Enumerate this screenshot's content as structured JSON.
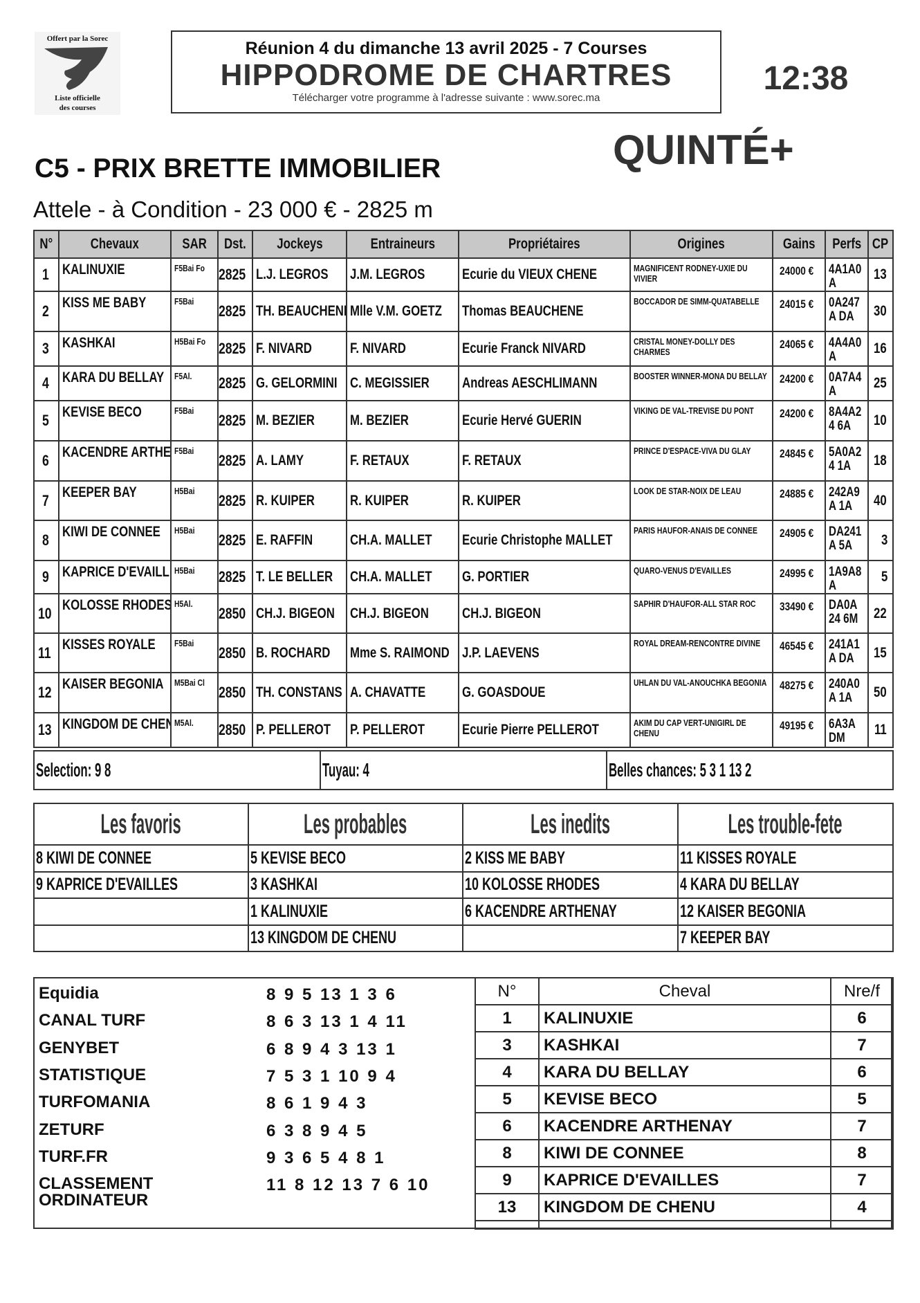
{
  "logo": {
    "top": "Offert par la Sorec",
    "bottom1": "Liste officielle",
    "bottom2": "des courses"
  },
  "header": {
    "reunion": "Réunion 4 du dimanche 13 avril 2025 - 7 Courses",
    "hippodrome": "HIPPODROME DE CHARTRES",
    "download": "Télécharger votre programme à l'adresse suivante : www.sorec.ma",
    "time": "12:38"
  },
  "quinte": "QUINTÉ+",
  "race": {
    "title": "C5 -  PRIX BRETTE IMMOBILIER",
    "subtitle": "Attele - à Condition - 23 000 € - 2825 m"
  },
  "table": {
    "headers": [
      "N°",
      "Chevaux",
      "SAR",
      "Dst.",
      "Jockeys",
      "Entraineurs",
      "Propriétaires",
      "Origines",
      "Gains",
      "Perfs",
      "CP"
    ],
    "rows": [
      [
        "1",
        "KALINUXIE",
        "F5Bai Fo",
        "2825",
        "L.J. LEGROS",
        "J.M. LEGROS",
        "Ecurie du VIEUX CHENE",
        "MAGNIFICENT RODNEY-UXIE DU VIVIER",
        "24000 €",
        "4A1A0A",
        "13"
      ],
      [
        "2",
        "KISS ME BABY",
        "F5Bai",
        "2825",
        "TH. BEAUCHENE",
        "Mlle V.M. GOETZ",
        "Thomas BEAUCHENE",
        "BOCCADOR DE SIMM-QUATABELLE",
        "24015 €",
        "0A247A DA",
        "30"
      ],
      [
        "3",
        "KASHKAI",
        "H5Bai Fo",
        "2825",
        "F. NIVARD",
        "F. NIVARD",
        "Ecurie Franck NIVARD",
        "CRISTAL MONEY-DOLLY DES CHARMES",
        "24065 €",
        "4A4A0A",
        "16"
      ],
      [
        "4",
        "KARA DU BELLAY",
        "F5Al.",
        "2825",
        "G. GELORMINI",
        "C. MEGISSIER",
        "Andreas AESCHLIMANN",
        "BOOSTER WINNER-MONA DU BELLAY",
        "24200 €",
        "0A7A4A",
        "25"
      ],
      [
        "5",
        "KEVISE BECO",
        "F5Bai",
        "2825",
        "M. BEZIER",
        "M. BEZIER",
        "Ecurie Hervé GUERIN",
        "VIKING DE VAL-TREVISE DU PONT",
        "24200 €",
        "8A4A24 6A",
        "10"
      ],
      [
        "6",
        "KACENDRE ARTHENAY",
        "F5Bai",
        "2825",
        "A. LAMY",
        "F. RETAUX",
        "F. RETAUX",
        "PRINCE D'ESPACE-VIVA DU GLAY",
        "24845 €",
        "5A0A24 1A",
        "18"
      ],
      [
        "7",
        "KEEPER BAY",
        "H5Bai",
        "2825",
        "R. KUIPER",
        "R. KUIPER",
        "R. KUIPER",
        "LOOK DE STAR-NOIX DE LEAU",
        "24885 €",
        "242A9A 1A",
        "40"
      ],
      [
        "8",
        "KIWI DE CONNEE",
        "H5Bai",
        "2825",
        "E. RAFFIN",
        "CH.A. MALLET",
        "Ecurie Christophe MALLET",
        "PARIS HAUFOR-ANAIS DE CONNEE",
        "24905 €",
        "DA241A 5A",
        "3"
      ],
      [
        "9",
        "KAPRICE D'EVAILLES",
        "H5Bai",
        "2825",
        "T. LE BELLER",
        "CH.A. MALLET",
        "G. PORTIER",
        "QUARO-VENUS D'EVAILLES",
        "24995 €",
        "1A9A8A",
        "5"
      ],
      [
        "10",
        "KOLOSSE RHODES",
        "H5Al.",
        "2850",
        "CH.J. BIGEON",
        "CH.J. BIGEON",
        "CH.J. BIGEON",
        "SAPHIR D'HAUFOR-ALL STAR ROC",
        "33490 €",
        "DA0A24 6M",
        "22"
      ],
      [
        "11",
        "KISSES ROYALE",
        "F5Bai",
        "2850",
        "B. ROCHARD",
        "Mme S. RAIMOND",
        "J.P. LAEVENS",
        "ROYAL DREAM-RENCONTRE DIVINE",
        "46545 €",
        "241A1A DA",
        "15"
      ],
      [
        "12",
        "KAISER BEGONIA",
        "M5Bai Cl",
        "2850",
        "TH. CONSTANS",
        "A. CHAVATTE",
        "G. GOASDOUE",
        "UHLAN DU VAL-ANOUCHKA BEGONIA",
        "48275 €",
        "240A0A 1A",
        "50"
      ],
      [
        "13",
        "KINGDOM DE CHENU",
        "M5Al.",
        "2850",
        "P. PELLEROT",
        "P. PELLEROT",
        "Ecurie Pierre PELLEROT",
        "AKIM DU CAP VERT-UNIGIRL DE CHENU",
        "49195 €",
        "6A3ADM",
        "11"
      ]
    ]
  },
  "selection": {
    "selection": "Selection: 9  8",
    "tuyau": "Tuyau: 4",
    "belles": "Belles chances: 5  3  1  13  2"
  },
  "categories": {
    "headers": [
      "Les favoris",
      "Les probables",
      "Les inedits",
      "Les trouble-fete"
    ],
    "rows": [
      [
        "8 KIWI DE CONNEE",
        "5 KEVISE BECO",
        "2 KISS ME BABY",
        "11 KISSES ROYALE"
      ],
      [
        "9 KAPRICE D'EVAILLES",
        "3 KASHKAI",
        "10 KOLOSSE RHODES",
        "4 KARA DU BELLAY"
      ],
      [
        "",
        "1 KALINUXIE",
        "6 KACENDRE ARTHENAY",
        "12 KAISER BEGONIA"
      ],
      [
        "",
        "13 KINGDOM DE CHENU",
        "",
        "7 KEEPER BAY"
      ]
    ]
  },
  "pronostics": [
    {
      "source": "Equidia",
      "value": "8 9 5 13 1 3 6"
    },
    {
      "source": "CANAL TURF",
      "value": "8 6 3 13 1 4 11"
    },
    {
      "source": "GENYBET",
      "value": "6 8 9 4 3 13 1"
    },
    {
      "source": "STATISTIQUE",
      "value": "7 5 3 1 10 9 4"
    },
    {
      "source": "TURFOMANIA",
      "value": "8 6 1 9 4 3"
    },
    {
      "source": "ZETURF",
      "value": "6 3 8 9 4 5"
    },
    {
      "source": "TURF.FR",
      "value": "9 3 6 5 4 8 1"
    },
    {
      "source": "CLASSEMENT ORDINATEUR",
      "value": "11 8 12 13 7 6 10"
    }
  ],
  "nre": {
    "headers": [
      "N°",
      "Cheval",
      "Nre/f"
    ],
    "rows": [
      [
        "1",
        "KALINUXIE",
        "6"
      ],
      [
        "3",
        "KASHKAI",
        "7"
      ],
      [
        "4",
        "KARA DU BELLAY",
        "6"
      ],
      [
        "5",
        "KEVISE BECO",
        "5"
      ],
      [
        "6",
        "KACENDRE ARTHENAY",
        "7"
      ],
      [
        "8",
        "KIWI DE CONNEE",
        "8"
      ],
      [
        "9",
        "KAPRICE D'EVAILLES",
        "7"
      ],
      [
        "13",
        "KINGDOM DE CHENU",
        "4"
      ]
    ]
  }
}
